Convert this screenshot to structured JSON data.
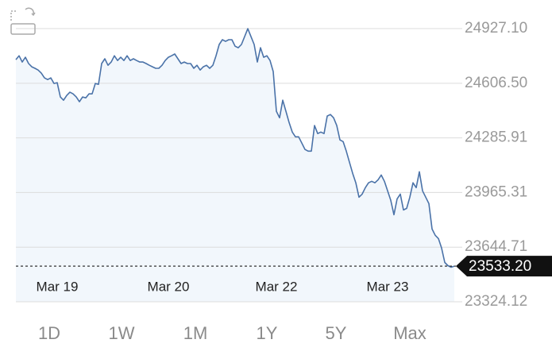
{
  "chart_data": {
    "type": "line",
    "color": "#4a72a8",
    "fill": "#f2f7fc",
    "grid": true,
    "categories": [
      null,
      null,
      null,
      null,
      null,
      null,
      null,
      null,
      null,
      null,
      null,
      null,
      null,
      "Mar 19",
      null,
      null,
      null,
      null,
      null,
      null,
      null,
      null,
      null,
      null,
      null,
      null,
      null,
      null,
      null,
      null,
      null,
      null,
      null,
      null,
      null,
      null,
      null,
      null,
      null,
      null,
      null,
      null,
      null,
      null,
      null,
      null,
      null,
      null,
      "Mar 20",
      null,
      null,
      null,
      null,
      null,
      null,
      null,
      null,
      null,
      null,
      null,
      null,
      null,
      null,
      null,
      null,
      null,
      null,
      null,
      null,
      null,
      null,
      null,
      null,
      null,
      null,
      null,
      null,
      null,
      null,
      null,
      null,
      null,
      "Mar 22",
      null,
      null,
      null,
      null,
      null,
      null,
      null,
      null,
      null,
      null,
      null,
      null,
      null,
      null,
      null,
      null,
      null,
      null,
      null,
      null,
      null,
      null,
      null,
      null,
      null,
      null,
      null,
      null,
      null,
      null,
      null,
      null,
      null,
      null,
      "Mar 23",
      null,
      null,
      null,
      null,
      null,
      null,
      null,
      null,
      null,
      null,
      null,
      null,
      null,
      null,
      null,
      null,
      null,
      null,
      null,
      null,
      null
    ],
    "values": [
      24745,
      24768,
      24731,
      24759,
      24722,
      24703,
      24694,
      24684,
      24666,
      24638,
      24628,
      24638,
      24605,
      24610,
      24526,
      24507,
      24535,
      24554,
      24544,
      24526,
      24498,
      24526,
      24521,
      24544,
      24544,
      24605,
      24600,
      24722,
      24750,
      24712,
      24731,
      24768,
      24740,
      24759,
      24740,
      24768,
      24740,
      24750,
      24740,
      24731,
      24731,
      24722,
      24712,
      24703,
      24694,
      24694,
      24712,
      24740,
      24759,
      24768,
      24778,
      24750,
      24722,
      24731,
      24722,
      24722,
      24694,
      24712,
      24684,
      24703,
      24712,
      24694,
      24712,
      24768,
      24834,
      24862,
      24852,
      24862,
      24862,
      24824,
      24815,
      24834,
      24880,
      24927,
      24880,
      24834,
      24731,
      24815,
      24759,
      24768,
      24740,
      24675,
      24442,
      24404,
      24507,
      24442,
      24376,
      24320,
      24292,
      24292,
      24255,
      24218,
      24208,
      24208,
      24358,
      24311,
      24320,
      24311,
      24414,
      24423,
      24404,
      24358,
      24274,
      24264,
      24208,
      24143,
      24078,
      24022,
      23938,
      23956,
      23994,
      24022,
      24031,
      24022,
      24040,
      24068,
      24031,
      23975,
      23919,
      23835,
      23928,
      23956,
      23863,
      23872,
      23938,
      24022,
      23994,
      24087,
      23975,
      23938,
      23900,
      23751,
      23714,
      23695,
      23639,
      23555,
      23536,
      23527,
      23533.2
    ],
    "ylim": [
      23324.12,
      25001.8
    ],
    "yticks": [
      23324.12,
      23644.71,
      23965.31,
      24285.91,
      {
        "value": 24606.5,
        "label": "24606.50"
      },
      {
        "value": 24927.1,
        "label": "24927.10"
      }
    ],
    "last_price": {
      "value": 23533.2,
      "label": "23533.20"
    },
    "range_buttons": [
      "1D",
      "1W",
      "1M",
      "1Y",
      "5Y",
      "Max"
    ]
  }
}
